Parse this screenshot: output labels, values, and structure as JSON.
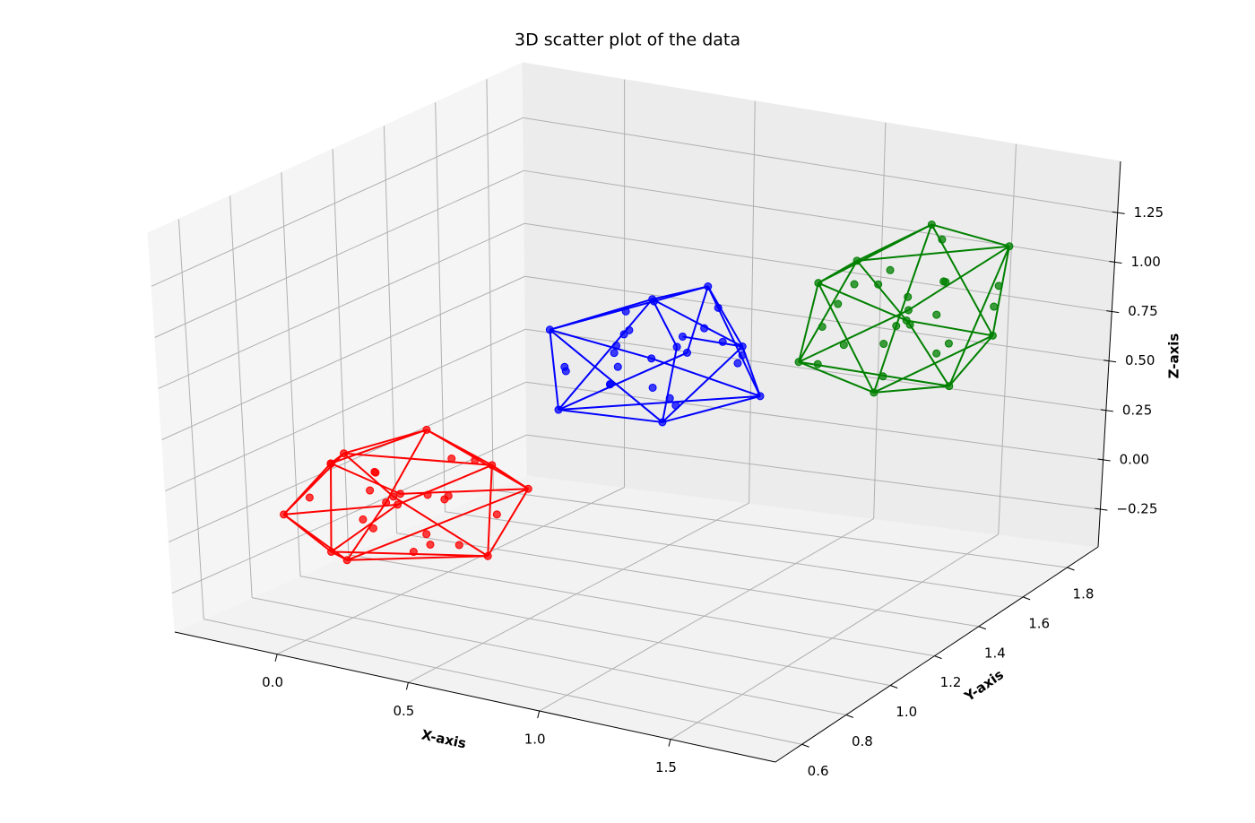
{
  "chart_data": {
    "type": "scatter3d",
    "title": "3D scatter plot of the data",
    "x_label": "X-axis",
    "y_label": "Y-axis",
    "z_label": "Z-axis",
    "xlim": [
      -0.39,
      1.9
    ],
    "ylim": [
      0.48,
      1.94
    ],
    "zlim": [
      -0.44,
      1.51
    ],
    "xticks": [
      {
        "value": 0,
        "label": "0.0"
      },
      0.5,
      {
        "value": 1,
        "label": "1.0"
      },
      1.5
    ],
    "yticks": [
      0.6,
      0.8,
      {
        "value": 1,
        "label": "1.0"
      },
      1.2,
      1.4,
      1.6,
      1.8
    ],
    "zticks": [
      {
        "value": -0.25,
        "label": "−0.25"
      },
      {
        "value": 0,
        "label": "0.00"
      },
      0.25,
      {
        "value": 0.5,
        "label": "0.50"
      },
      0.75,
      {
        "value": 1,
        "label": "1.00"
      },
      1.25
    ],
    "grid": true,
    "hull": true,
    "series": [
      {
        "color": "#ff0000",
        "x": [
          0.05,
          -0.22,
          0.18,
          -0.1,
          0.28,
          -0.3,
          0.12,
          0,
          -0.15,
          0.2,
          -0.05,
          0.25,
          -0.25,
          0.08,
          -0.12,
          0.15,
          -0.05,
          0.1,
          -0.2,
          0.3,
          -0.08,
          0.02,
          -0.28,
          0.22,
          -0.02,
          0.06,
          -0.18,
          0.14,
          -0.1,
          0.04
        ],
        "y": [
          0.9,
          1.12,
          1.2,
          0.75,
          0.95,
          1.05,
          1.28,
          1,
          0.88,
          0.8,
          1.18,
          1.1,
          0.8,
          0.7,
          1.25,
          1.05,
          0.95,
          1.12,
          1,
          1.22,
          0.82,
          1.3,
          1.15,
          0.88,
          1.08,
          0.92,
          1.1,
          0.98,
          1.02,
          1.15
        ],
        "z": [
          0.08,
          -0.05,
          0.12,
          0.15,
          -0.1,
          0.1,
          -0.18,
          0,
          -0.2,
          0.22,
          0.25,
          -0.25,
          0,
          -0.08,
          -0.12,
          0.05,
          -0.1,
          0.18,
          0.2,
          0.02,
          0.28,
          0.05,
          -0.22,
          -0.02,
          -0.28,
          0.1,
          0.06,
          -0.15,
          0.12,
          -0.05
        ]
      },
      {
        "color": "#0000ff",
        "x": [
          0.7,
          0.97,
          0.57,
          0.85,
          0.47,
          1.05,
          0.63,
          0.75,
          0.9,
          0.55,
          0.8,
          0.5,
          1,
          0.67,
          0.87,
          0.6,
          0.8,
          0.65,
          0.95,
          0.45,
          0.83,
          0.73,
          1.03,
          0.53,
          0.77,
          0.69,
          0.93,
          0.61,
          0.85,
          0.71
        ],
        "y": [
          1.15,
          1.37,
          1.45,
          1,
          1.2,
          1.3,
          1.53,
          1.25,
          1.13,
          1.05,
          1.43,
          1.35,
          1.05,
          0.95,
          1.5,
          1.3,
          1.2,
          1.37,
          1.25,
          1.47,
          1.07,
          1.55,
          1.4,
          1.13,
          1.33,
          1.17,
          1.35,
          1.23,
          1.27,
          1.4
        ],
        "z": [
          0.83,
          0.7,
          0.87,
          0.9,
          0.65,
          0.85,
          0.57,
          0.75,
          0.55,
          0.97,
          1,
          0.5,
          0.75,
          0.67,
          0.63,
          0.8,
          0.65,
          0.93,
          0.95,
          0.77,
          1.03,
          0.8,
          0.53,
          0.73,
          0.47,
          0.85,
          0.81,
          0.6,
          0.87,
          0.7
        ]
      },
      {
        "color": "#008000",
        "x": [
          1.55,
          1.28,
          1.68,
          1.4,
          1.78,
          1.2,
          1.62,
          1.5,
          1.35,
          1.7,
          1.45,
          1.75,
          1.25,
          1.58,
          1.38,
          1.65,
          1.45,
          1.6,
          1.3,
          1.8,
          1.42,
          1.52,
          1.22,
          1.72,
          1.48,
          1.56,
          1.32,
          1.64,
          1.4,
          1.54
        ],
        "y": [
          1.6,
          1.38,
          1.3,
          1.75,
          1.55,
          1.45,
          1.22,
          1.5,
          1.62,
          1.7,
          1.32,
          1.4,
          1.7,
          1.8,
          1.25,
          1.45,
          1.55,
          1.38,
          1.5,
          1.28,
          1.68,
          1.2,
          1.35,
          1.62,
          1.42,
          1.58,
          1.4,
          1.52,
          1.48,
          1.35
        ],
        "z": [
          1.08,
          0.95,
          1.12,
          1.15,
          0.9,
          1.1,
          0.82,
          1,
          0.8,
          1.22,
          1.25,
          0.75,
          1,
          0.92,
          0.88,
          1.05,
          0.9,
          1.18,
          1.2,
          1.02,
          1.28,
          1.05,
          0.78,
          0.98,
          0.72,
          1.1,
          1.06,
          0.85,
          1.12,
          0.95
        ]
      }
    ]
  }
}
